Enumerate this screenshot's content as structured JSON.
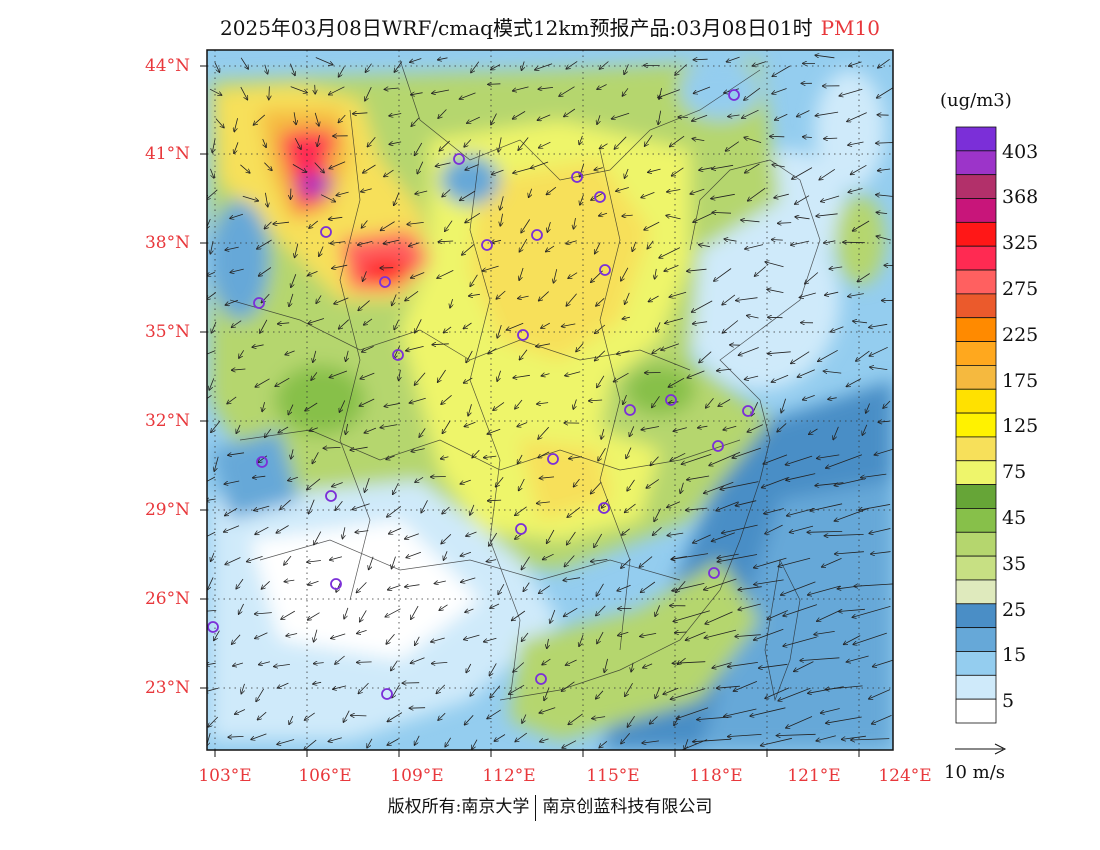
{
  "header": {
    "title": "2025年03月08日WRF/cmaq模式12km预报产品:03月08日01时",
    "variable": "PM10"
  },
  "axes": {
    "lat_labels": [
      "44°N",
      "41°N",
      "38°N",
      "35°N",
      "32°N",
      "29°N",
      "26°N",
      "23°N"
    ],
    "lon_labels": [
      "103°E",
      "106°E",
      "109°E",
      "112°E",
      "115°E",
      "118°E",
      "121°E",
      "124°E"
    ]
  },
  "legend": {
    "unit": "(ug/m3)",
    "labels": [
      "403",
      "368",
      "325",
      "275",
      "225",
      "175",
      "125",
      "75",
      "45",
      "35",
      "25",
      "15",
      "5"
    ],
    "colors": [
      "#7b2fd8",
      "#9c34c9",
      "#b2306a",
      "#c8157a",
      "#ff1717",
      "#ff2a52",
      "#ff6060",
      "#eb5a2c",
      "#ff8a00",
      "#ffa81e",
      "#f5b93f",
      "#ffe100",
      "#fff200",
      "#f7e05a",
      "#eef56b",
      "#66a537",
      "#87c04a",
      "#b5d66e",
      "#c7e083",
      "#dfeabd",
      "#4a8ec6",
      "#66a8d8",
      "#94cdef",
      "#cfeafa",
      "#ffffff"
    ]
  },
  "wind_legend": {
    "label": "10 m/s"
  },
  "footer": {
    "left": "版权所有:南京大学",
    "right": "南京创蓝科技有限公司"
  }
}
